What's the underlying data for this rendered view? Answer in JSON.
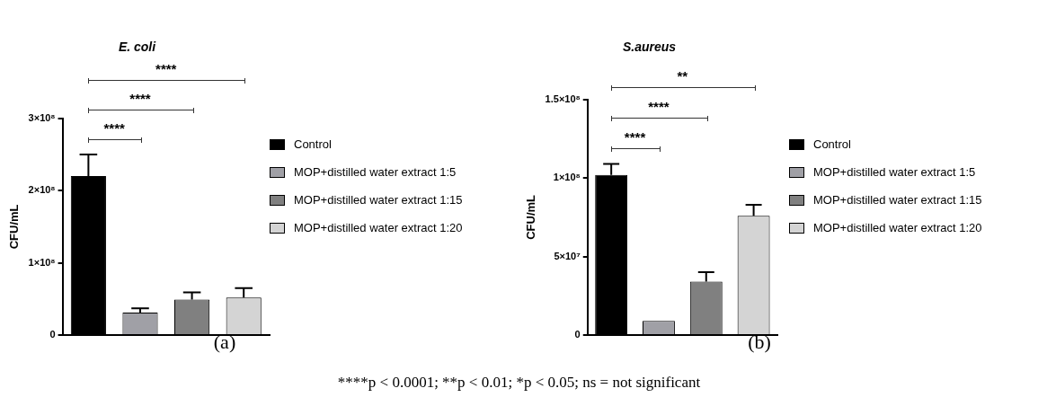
{
  "chart_data": [
    {
      "type": "bar",
      "title": "E. coli",
      "ylabel": "CFU/mL",
      "categories": [
        null,
        null,
        null,
        null
      ],
      "series": [
        {
          "name": "Control",
          "color": "#000000",
          "values": [
            220000000,
            null,
            null,
            null
          ],
          "errors": [
            30000000,
            null,
            null,
            null
          ]
        },
        {
          "name": "MOP+distilled water extract 1:5",
          "color": "#a0a0a6",
          "values": [
            null,
            31000000,
            null,
            null
          ],
          "errors": [
            null,
            6000000,
            null,
            null
          ]
        },
        {
          "name": "MOP+distilled water extract 1:15",
          "color": "#808080",
          "values": [
            null,
            null,
            49000000,
            null
          ],
          "errors": [
            null,
            null,
            10000000,
            null
          ]
        },
        {
          "name": "MOP+distilled water extract 1:20",
          "color": "#d4d4d4",
          "values": [
            null,
            null,
            null,
            52000000
          ],
          "errors": [
            null,
            null,
            null,
            13000000
          ]
        }
      ],
      "ylim": [
        0,
        300000000
      ],
      "yticks": [
        0,
        {
          "value": 100000000,
          "label": "1×10⁸"
        },
        {
          "value": 200000000,
          "label": "2×10⁸"
        },
        {
          "value": 300000000,
          "label": "3×10⁸"
        }
      ],
      "grid": false,
      "legend": "right",
      "tick_labels": "y",
      "annotations": [
        "****",
        "****",
        "****",
        "(a)"
      ]
    },
    {
      "type": "bar",
      "title": "S.aureus",
      "ylabel": "CFU/mL",
      "categories": [
        null,
        null,
        null,
        null
      ],
      "series": [
        {
          "name": "Control",
          "color": "#000000",
          "values": [
            102000000,
            null,
            null,
            null
          ],
          "errors": [
            7000000,
            null,
            null,
            null
          ]
        },
        {
          "name": "MOP+distilled water extract 1:5",
          "color": "#a0a0a6",
          "values": [
            null,
            9000000,
            null,
            null
          ],
          "errors": [
            null,
            null,
            null,
            null
          ]
        },
        {
          "name": "MOP+distilled water extract 1:15",
          "color": "#808080",
          "values": [
            null,
            null,
            34000000,
            null
          ],
          "errors": [
            null,
            null,
            6000000,
            null
          ]
        },
        {
          "name": "MOP+distilled water extract 1:20",
          "color": "#d4d4d4",
          "values": [
            null,
            null,
            null,
            76000000
          ],
          "errors": [
            null,
            null,
            null,
            7000000
          ]
        }
      ],
      "ylim": [
        0,
        150000000
      ],
      "yticks": [
        0,
        {
          "value": 50000000,
          "label": "5×10⁷"
        },
        {
          "value": 100000000,
          "label": "1×10⁸"
        },
        {
          "value": 150000000,
          "label": "1.5×10⁸"
        }
      ],
      "grid": false,
      "legend": "right",
      "tick_labels": "y",
      "annotations": [
        "****",
        "****",
        "**",
        "(b)",
        "****p < 0.0001; **p < 0.01; *p < 0.05; ns = not significant"
      ]
    }
  ]
}
